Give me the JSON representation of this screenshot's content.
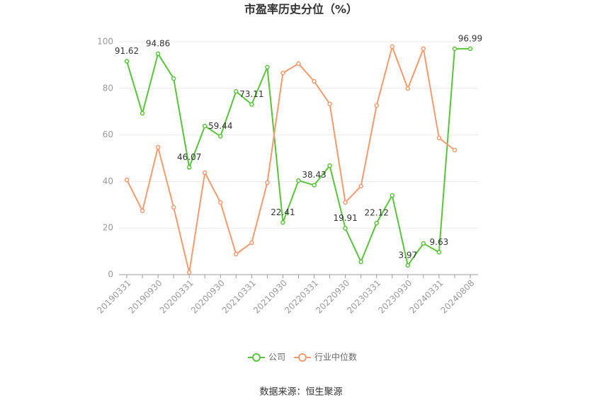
{
  "chart_data": {
    "type": "line",
    "title": "市盈率历史分位（%）",
    "source": "数据来源：恒生聚源",
    "categories": [
      "20190331",
      null,
      "20190930",
      null,
      "20200331",
      null,
      "20200930",
      null,
      "20210331",
      null,
      "20210930",
      null,
      "20220331",
      null,
      "20220930",
      null,
      "20230331",
      null,
      "20230930",
      null,
      "20240331",
      null,
      "20240808"
    ],
    "series": [
      {
        "name": "公司",
        "color": "#5ac33c",
        "values": [
          91.62,
          69.3,
          94.86,
          84.2,
          46.07,
          63.8,
          59.44,
          78.7,
          73.11,
          89.1,
          22.41,
          40.4,
          38.43,
          46.8,
          19.91,
          5.5,
          22.12,
          34.0,
          3.97,
          13.4,
          9.63,
          97.0,
          96.99
        ],
        "value_labels": [
          "91.62",
          null,
          "94.86",
          null,
          "46.07",
          null,
          "59.44",
          null,
          "73.11",
          null,
          "22.41",
          null,
          "38.43",
          null,
          "19.91",
          null,
          "22.12",
          null,
          "3.97",
          null,
          "9.63",
          null,
          "96.99"
        ]
      },
      {
        "name": "行业中位数",
        "color": "#f39a6e",
        "values": [
          40.7,
          27.4,
          54.7,
          28.9,
          0.9,
          43.8,
          31.0,
          8.8,
          13.7,
          39.5,
          86.6,
          90.6,
          83.0,
          73.3,
          31.0,
          38.0,
          72.6,
          97.9,
          79.9,
          97.0,
          58.7,
          53.5,
          null
        ]
      }
    ],
    "ylim": [
      0,
      100
    ],
    "yticks": [
      0,
      20,
      40,
      60,
      80,
      100
    ],
    "grid": true
  }
}
